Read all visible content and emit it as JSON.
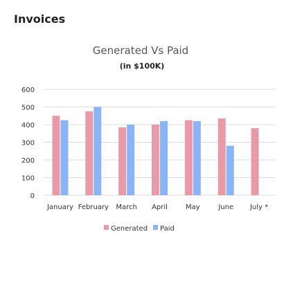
{
  "panel": {
    "title": "Invoices"
  },
  "colors": {
    "generated": "#ea9aa6",
    "paid": "#8ab4f8",
    "grid": "#dcdcdc",
    "text": "#333333",
    "title": "#555555"
  },
  "chart_data": {
    "type": "bar",
    "title": "Generated Vs Paid",
    "subtitle": "(in $100K)",
    "categories": [
      "January",
      "February",
      "March",
      "April",
      "May",
      "June",
      "July *"
    ],
    "series": [
      {
        "name": "Generated",
        "values": [
          450,
          475,
          385,
          400,
          425,
          435,
          380
        ]
      },
      {
        "name": "Paid",
        "values": [
          425,
          500,
          400,
          420,
          420,
          280,
          null
        ]
      }
    ],
    "yticks": [
      "0",
      "100",
      "200",
      "300",
      "400",
      "500",
      "600"
    ],
    "ylim": [
      0,
      600
    ],
    "grid": true,
    "legend_position": "bottom"
  }
}
